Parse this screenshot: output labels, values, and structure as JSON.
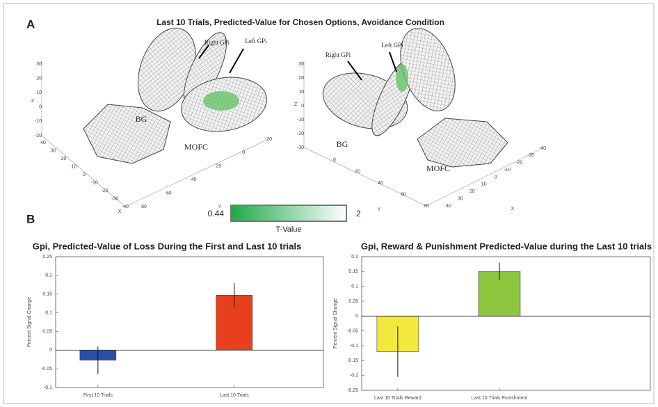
{
  "panel_a": {
    "label": "A",
    "title": "Last 10 Trials, Predicted-Value for Chosen Options, Avoidance Condition",
    "views": [
      {
        "annotations": [
          "Right GPi",
          "Left GPi",
          "BG",
          "MOFC"
        ],
        "z_label": "Z",
        "z_ticks": [
          30,
          20,
          10,
          0,
          -10,
          -20
        ],
        "x_label": "X",
        "x_ticks": [
          40,
          30,
          20,
          10,
          0,
          -10,
          -20,
          -30,
          -40
        ],
        "y_label": "Y",
        "y_ticks": [
          80,
          60,
          40,
          20,
          0,
          -20
        ]
      },
      {
        "annotations": [
          "Right GPi",
          "Left GPi",
          "BG",
          "MOFC"
        ],
        "z_label": "Z",
        "z_ticks": [
          30,
          20,
          10,
          0,
          -10,
          -20,
          -30
        ],
        "x_label": "X",
        "x_ticks": [
          40,
          30,
          20,
          10,
          0,
          -10,
          -20,
          -30,
          -40
        ],
        "y_label": "Y",
        "y_ticks": [
          0,
          20,
          40,
          60,
          80
        ]
      }
    ],
    "colorbar": {
      "min": 0.44,
      "max": 2,
      "label": "T-Value"
    }
  },
  "panel_b": {
    "label": "B"
  },
  "chart_data": [
    {
      "type": "bar",
      "title": "Gpi, Predicted-Value of Loss During the First and Last 10 trials",
      "y_label": "Percent Signal Change",
      "categories": [
        "First 10 Trials",
        "Last 10 Trials"
      ],
      "values": [
        -0.027,
        0.147
      ],
      "errors": [
        0.037,
        0.032
      ],
      "colors": [
        "#2b4ea6",
        "#e8401c"
      ],
      "ylim": [
        -0.1,
        0.25
      ],
      "yticks": [
        -0.1,
        -0.05,
        0,
        0.05,
        0.1,
        0.15,
        0.2,
        0.25
      ]
    },
    {
      "type": "bar",
      "title": "Gpi, Reward & Punishment Predicted-Value during the Last 10 trials",
      "y_label": "Percent Signal Change",
      "categories": [
        "Last 10 Trials Reward",
        "Last 10 Trials Punishment"
      ],
      "values": [
        -0.12,
        0.15
      ],
      "errors": [
        0.085,
        0.03
      ],
      "colors": [
        "#f2e93c",
        "#8cc63f"
      ],
      "ylim": [
        -0.25,
        0.2
      ],
      "yticks": [
        -0.25,
        -0.2,
        -0.15,
        -0.1,
        -0.05,
        0,
        0.05,
        0.1,
        0.15,
        0.2
      ]
    }
  ]
}
